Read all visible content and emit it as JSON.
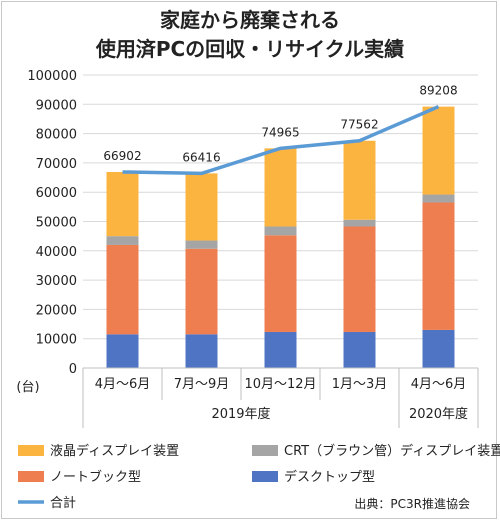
{
  "title_line1": "家庭から廃棄される",
  "title_line2": "使用済PCの回収・リサイクル実績",
  "source": "出典：PC3R推進協会",
  "chart_data": {
    "type": "bar",
    "stacked": true,
    "y_unit": "(台)",
    "ylim": [
      0,
      100000
    ],
    "yticks": [
      0,
      10000,
      20000,
      30000,
      40000,
      50000,
      60000,
      70000,
      80000,
      90000,
      100000
    ],
    "grid": true,
    "legend_position": "bottom",
    "categories": [
      "4月～6月",
      "7月～9月",
      "10月～12月",
      "1月～3月",
      "4月～6月"
    ],
    "groups": [
      {
        "label": "2019年度",
        "span": [
          0,
          3
        ]
      },
      {
        "label": "2020年度",
        "span": [
          4,
          4
        ]
      }
    ],
    "series": [
      {
        "name": "デスクトップ型",
        "color": "#4f74c4",
        "values": [
          11500,
          11500,
          12300,
          12300,
          13000
        ]
      },
      {
        "name": "ノートブック型",
        "color": "#ee7d4f",
        "values": [
          30500,
          29200,
          33000,
          36000,
          43500
        ]
      },
      {
        "name": "CRT（ブラウン管）ディスプレイ装置",
        "color": "#a5a5a5",
        "values": [
          3000,
          2800,
          3000,
          2300,
          2700
        ]
      },
      {
        "name": "液晶ディスプレイ装置",
        "color": "#fbb440",
        "values": [
          21902,
          22916,
          26665,
          26962,
          30008
        ]
      }
    ],
    "total": {
      "name": "合計",
      "color": "#5b9bd5",
      "values": [
        66902,
        66416,
        74965,
        77562,
        89208
      ]
    }
  },
  "legend_order": [
    3,
    2,
    1,
    0
  ]
}
